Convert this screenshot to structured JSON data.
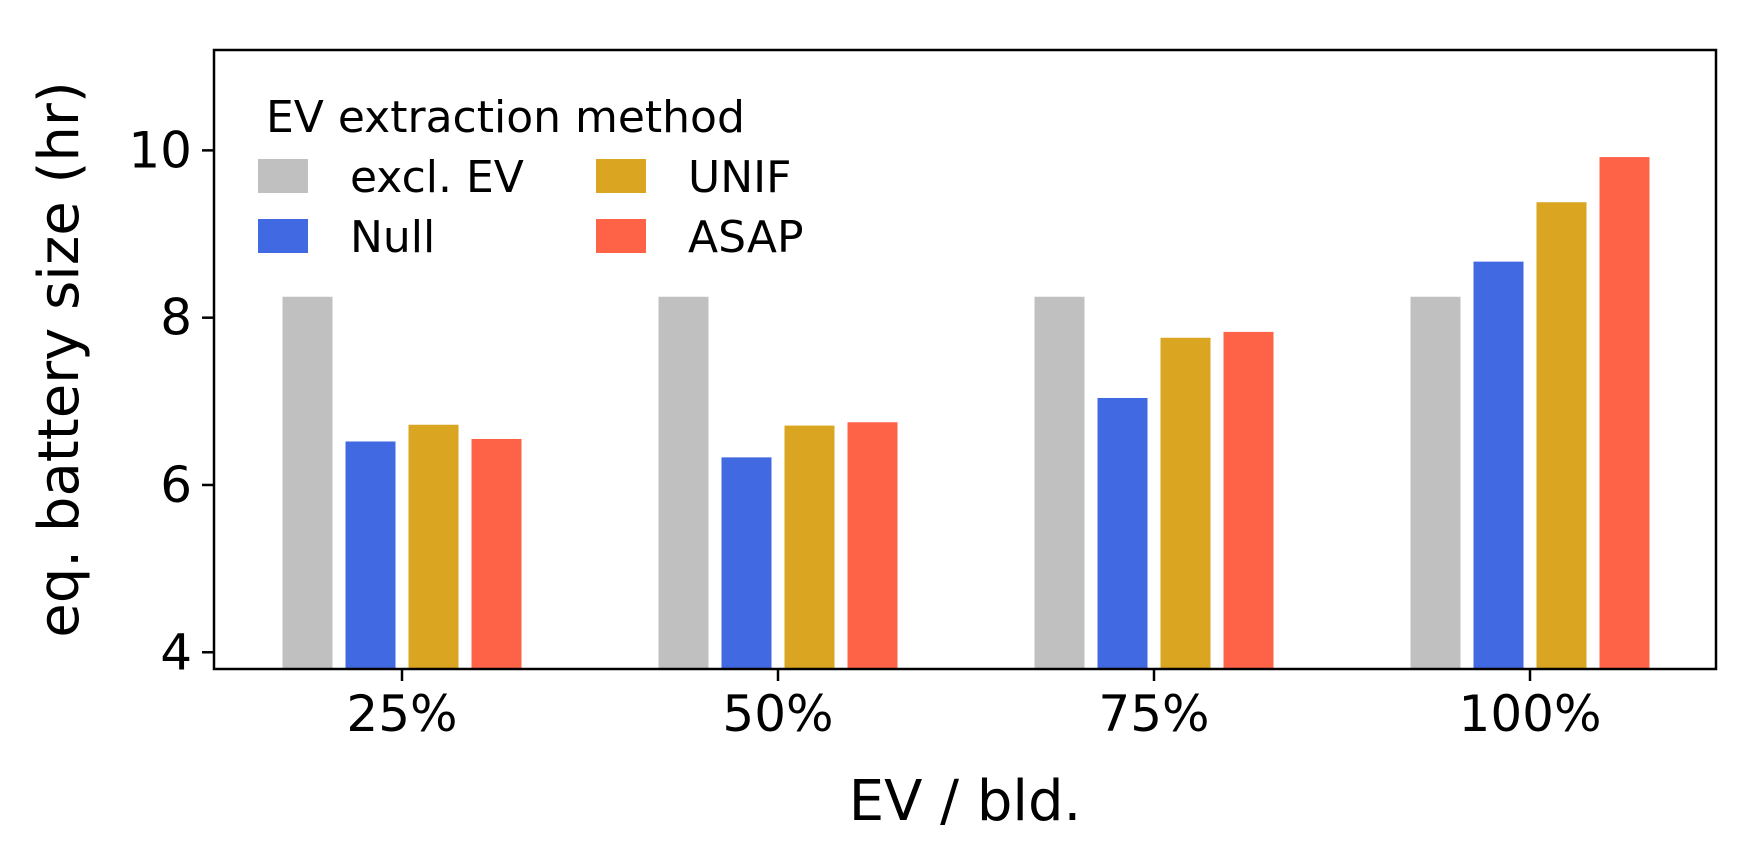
{
  "chart_data": {
    "type": "bar",
    "categories": [
      "25%",
      "50%",
      "75%",
      "100%"
    ],
    "series": [
      {
        "name": "excl. EV",
        "color": "#c0c0c0",
        "values": [
          8.25,
          8.25,
          8.25,
          8.25
        ]
      },
      {
        "name": "Null",
        "color": "#4169e1",
        "values": [
          6.52,
          6.33,
          7.04,
          8.67
        ]
      },
      {
        "name": "UNIF",
        "color": "#daa520",
        "values": [
          6.72,
          6.71,
          7.76,
          9.38
        ]
      },
      {
        "name": "ASAP",
        "color": "#ff6347",
        "values": [
          6.55,
          6.75,
          7.83,
          9.92
        ]
      }
    ],
    "xlabel": "EV / bld.",
    "ylabel": "eq. battery size (hr)",
    "ylim": [
      3.8,
      11.2
    ],
    "yticks": [
      "4",
      "6",
      "8",
      "10"
    ],
    "legend": {
      "title": "EV extraction method",
      "placement": "top-left",
      "columns": 2
    },
    "grid": false
  }
}
